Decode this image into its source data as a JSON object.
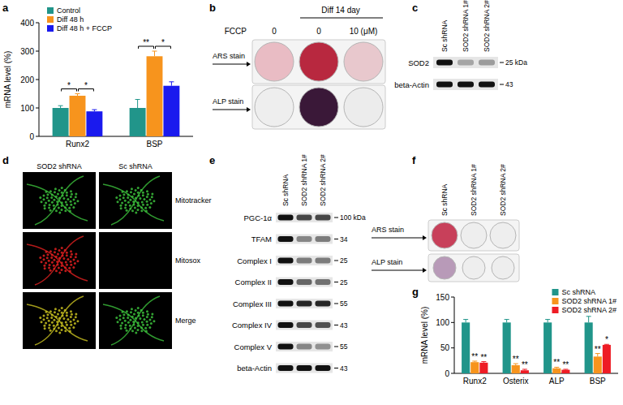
{
  "chart_data": [
    {
      "type": "bar",
      "panel_label": "a",
      "ylabel": "mRNA level (%)",
      "categories": [
        "Runx2",
        "BSP"
      ],
      "series": [
        {
          "name": "Control",
          "color": "#21958a",
          "values": [
            100,
            100
          ],
          "errors": [
            8,
            30
          ]
        },
        {
          "name": "Diff 48 h",
          "color": "#f7941d",
          "values": [
            143,
            282
          ],
          "errors": [
            7,
            18
          ]
        },
        {
          "name": "Diff 48 h + FCCP",
          "color": "#1a1aee",
          "values": [
            88,
            178
          ],
          "errors": [
            6,
            14
          ]
        }
      ],
      "ylim": [
        0,
        400
      ],
      "yticks": [
        0,
        100,
        200,
        300,
        400
      ],
      "legend": "top-left",
      "brackets": [
        {
          "category": 0,
          "series": [
            0,
            1
          ],
          "text": "*"
        },
        {
          "category": 0,
          "series": [
            1,
            2
          ],
          "text": "*"
        },
        {
          "category": 1,
          "series": [
            0,
            1
          ],
          "text": "**"
        },
        {
          "category": 1,
          "series": [
            1,
            2
          ],
          "text": "*"
        }
      ]
    },
    {
      "type": "bar",
      "panel_label": "g",
      "ylabel": "mRNA level (%)",
      "categories": [
        "Runx2",
        "Osterix",
        "ALP",
        "BSP"
      ],
      "series": [
        {
          "name": "Sc shRNA",
          "color": "#21958a",
          "values": [
            100,
            100,
            100,
            100
          ],
          "errors": [
            6,
            6,
            6,
            12
          ],
          "significance": [
            null,
            null,
            null,
            null
          ]
        },
        {
          "name": "SOD2 shRNA 1#",
          "color": "#f7941d",
          "values": [
            22,
            16,
            10,
            33
          ],
          "errors": [
            2,
            3,
            2,
            6
          ],
          "significance": [
            "**",
            "**",
            "**",
            "**"
          ]
        },
        {
          "name": "SOD2 shRNA 2#",
          "color": "#ee1c25",
          "values": [
            21,
            6,
            7,
            56
          ],
          "errors": [
            2,
            2,
            1,
            1
          ],
          "significance": [
            "**",
            "**",
            "**",
            "*"
          ]
        }
      ],
      "ylim": [
        0,
        150
      ],
      "yticks": [
        0,
        50,
        100,
        150
      ],
      "legend": "top-right"
    }
  ],
  "panels": {
    "b": {
      "panel_label": "b",
      "treatment_label": "FCCP",
      "group_label": "Diff 14 day",
      "columns": [
        "0",
        "0",
        "10 (μM)"
      ],
      "rows": [
        {
          "label": "ARS stain",
          "colors": [
            "#e9bcc4",
            "#b8283f",
            "#e8c8cd"
          ]
        },
        {
          "label": "ALP stain",
          "colors": [
            "#eeeeee",
            "#3a1838",
            "#ececec"
          ]
        }
      ]
    },
    "c": {
      "panel_label": "c",
      "lanes": [
        "Sc shRNA",
        "SOD2 shRNA 1#",
        "SOD2 shRNA 2#"
      ],
      "rows": [
        {
          "label": "SOD2",
          "mw_label": "25 kDa",
          "bands": [
            1,
            0.3,
            0.35
          ]
        },
        {
          "label": "beta-Actin",
          "mw_label": "43",
          "bands": [
            1,
            1,
            1
          ]
        }
      ]
    },
    "d": {
      "panel_label": "d",
      "columns": [
        "SOD2 shRNA",
        "Sc shRNA"
      ],
      "rows": [
        {
          "label": "Mitotracker",
          "colors": [
            "#3cc03c",
            "#3cc03c"
          ]
        },
        {
          "label": "Mitosox",
          "colors": [
            "#e02020",
            null
          ]
        },
        {
          "label": "Merge",
          "colors": [
            "#c8c020",
            "#3cc03c"
          ]
        }
      ]
    },
    "e": {
      "panel_label": "e",
      "lanes": [
        "Sc shRNA",
        "SOD2 shRNA 1#",
        "SOD2 shRNA 2#"
      ],
      "rows": [
        {
          "label": "PGC-1α",
          "mw_label": "100 kDa",
          "bands": [
            1,
            0.75,
            0.75
          ]
        },
        {
          "label": "TFAM",
          "mw_label": "34",
          "bands": [
            1,
            0.45,
            0.5
          ]
        },
        {
          "label": "Complex I",
          "mw_label": "25",
          "bands": [
            1,
            0.5,
            0.5
          ]
        },
        {
          "label": "Complex II",
          "mw_label": "25",
          "bands": [
            1,
            0.6,
            0.55
          ]
        },
        {
          "label": "Complex III",
          "mw_label": "55",
          "bands": [
            1,
            0.9,
            0.9
          ]
        },
        {
          "label": "Complex IV",
          "mw_label": "43",
          "bands": [
            1,
            0.75,
            0.7
          ]
        },
        {
          "label": "Complex V",
          "mw_label": "55",
          "bands": [
            1,
            0.45,
            0.4
          ]
        },
        {
          "label": "beta-Actin",
          "mw_label": "43",
          "bands": [
            1,
            1,
            1
          ]
        }
      ]
    },
    "f": {
      "panel_label": "f",
      "lanes": [
        "Sc shRNA",
        "SOD2 shRNA 1#",
        "SOD2 shRNA 2#"
      ],
      "rows": [
        {
          "label": "ARS stain",
          "colors": [
            "#c8405a",
            "#eeeeee",
            "#eeeeee"
          ]
        },
        {
          "label": "ALP stain",
          "colors": [
            "#b89ab8",
            "#eeeeee",
            "#eeeeee"
          ]
        }
      ]
    }
  }
}
